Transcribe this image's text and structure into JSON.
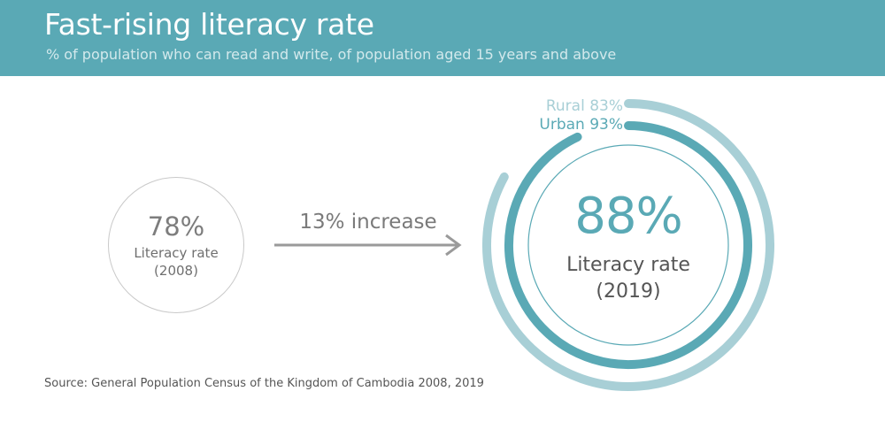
{
  "header": {
    "title": "Fast-rising literacy rate",
    "subtitle": "% of population who can read and write, of population aged 15 years and above"
  },
  "colors": {
    "header_bg": "#5aa9b5",
    "rural": "#a8cfd6",
    "urban": "#5aa9b5",
    "neutral": "#c9c9c9"
  },
  "chart_data": {
    "type": "pie",
    "title": "Fast-rising literacy rate",
    "subtitle": "% of population who can read and write, of population aged 15 years and above",
    "year_2008": {
      "value": "78%",
      "label": "Literacy rate",
      "year": "(2008)"
    },
    "change_label": "13% increase",
    "year_2019": {
      "value": "88%",
      "label": "Literacy rate",
      "year": "(2019)"
    },
    "series": [
      {
        "name": "Rural",
        "label": "Rural 83%",
        "value": 83
      },
      {
        "name": "Urban",
        "label": "Urban 93%",
        "value": 93
      }
    ]
  },
  "source": "Source: General Population Census of the Kingdom of Cambodia 2008, 2019"
}
